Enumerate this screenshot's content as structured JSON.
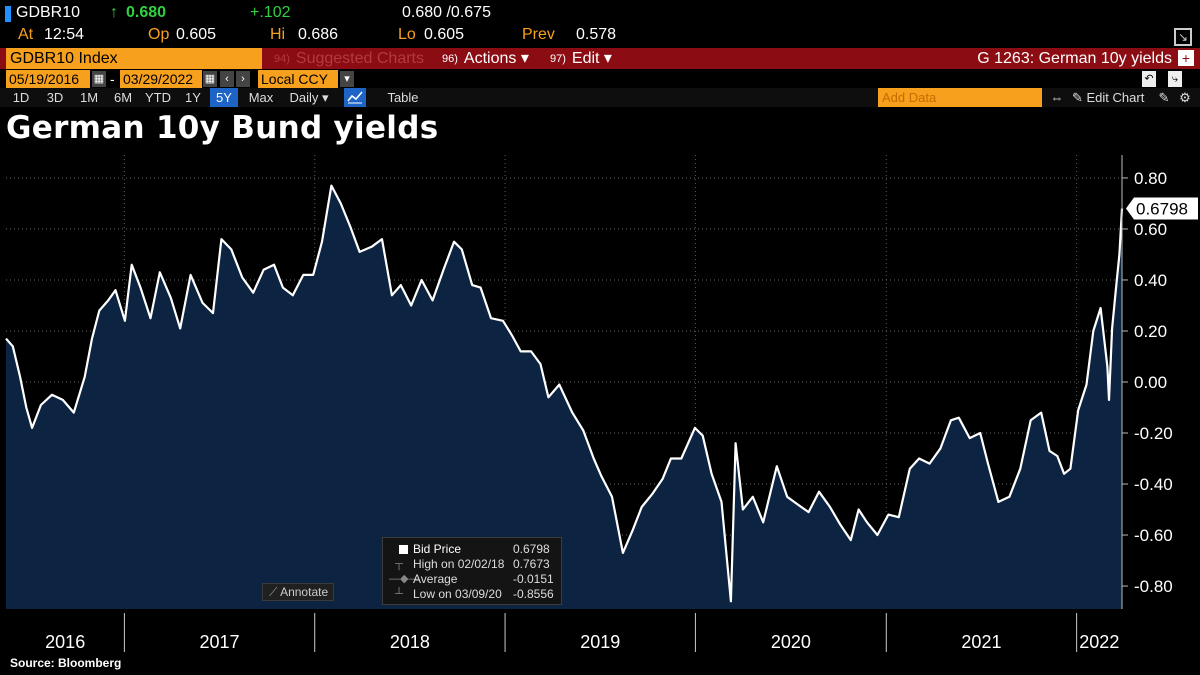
{
  "quote": {
    "ticker": "GDBR10",
    "last": "0.680",
    "up_arrow": "↑",
    "change": "+.102",
    "bid_ask": "0.680 /0.675",
    "at_label": "At",
    "time": "12:54",
    "open_label": "Op",
    "open": "0.605",
    "high_label": "Hi",
    "high": "0.686",
    "low_label": "Lo",
    "low": "0.605",
    "prev_label": "Prev",
    "prev": "0.578"
  },
  "command_bar": {
    "security": "GDBR10 Index",
    "suggested_num": "94)",
    "suggested": "Suggested Charts",
    "actions_num": "96)",
    "actions": "Actions ▾",
    "edit_num": "97)",
    "edit": "Edit ▾",
    "chart_id": "G 1263: German 10y yields"
  },
  "date_bar": {
    "start": "05/19/2016",
    "end": "03/29/2022",
    "currency": "Local CCY"
  },
  "range_bar": {
    "ranges": [
      "1D",
      "3D",
      "1M",
      "6M",
      "YTD",
      "1Y",
      "5Y",
      "Max"
    ],
    "selected": "5Y",
    "frequency": "Daily ▾",
    "table": "Table",
    "add_data": "Add Data",
    "edit_chart": "Edit Chart"
  },
  "colors": {
    "amber": "#f7a01d",
    "red_bar": "#8b0d13",
    "area_fill": "#0d2342",
    "line": "#ffffff",
    "selected_blue": "#1e63c6"
  },
  "annotate_label": "Annotate",
  "legend": {
    "rows": [
      {
        "icon": "square-icon",
        "label": "Bid Price",
        "value": "0.6798"
      },
      {
        "icon": "high-icon",
        "label": "High on 02/02/18",
        "value": "0.7673"
      },
      {
        "icon": "average-icon",
        "label": "Average",
        "value": "-0.0151"
      },
      {
        "icon": "low-icon",
        "label": "Low on 03/09/20",
        "value": "-0.8556"
      }
    ]
  },
  "source": "Source: Bloomberg",
  "chart_data": {
    "type": "area",
    "title": "German 10y Bund yields",
    "series": [
      {
        "name": "Bid Price",
        "x": [
          "2016-05-19",
          "2016-06-01",
          "2016-06-15",
          "2016-06-27",
          "2016-07-08",
          "2016-07-25",
          "2016-08-15",
          "2016-09-05",
          "2016-09-26",
          "2016-10-17",
          "2016-10-31",
          "2016-11-14",
          "2016-12-01",
          "2016-12-15",
          "2017-01-02",
          "2017-01-15",
          "2017-02-01",
          "2017-02-20",
          "2017-03-10",
          "2017-03-31",
          "2017-04-18",
          "2017-05-08",
          "2017-05-31",
          "2017-06-20",
          "2017-07-06",
          "2017-07-25",
          "2017-08-15",
          "2017-09-05",
          "2017-09-25",
          "2017-10-15",
          "2017-11-01",
          "2017-11-20",
          "2017-12-10",
          "2017-12-29",
          "2018-01-15",
          "2018-02-02",
          "2018-02-20",
          "2018-03-10",
          "2018-03-28",
          "2018-04-20",
          "2018-05-10",
          "2018-05-29",
          "2018-06-15",
          "2018-07-05",
          "2018-07-25",
          "2018-08-15",
          "2018-09-05",
          "2018-09-25",
          "2018-10-10",
          "2018-10-30",
          "2018-11-15",
          "2018-12-05",
          "2018-12-28",
          "2019-01-15",
          "2019-01-31",
          "2019-02-20",
          "2019-03-10",
          "2019-03-25",
          "2019-04-15",
          "2019-05-10",
          "2019-05-31",
          "2019-06-20",
          "2019-07-05",
          "2019-07-25",
          "2019-08-15",
          "2019-09-03",
          "2019-09-20",
          "2019-10-10",
          "2019-10-30",
          "2019-11-15",
          "2019-12-05",
          "2019-12-31",
          "2020-01-15",
          "2020-02-01",
          "2020-02-20",
          "2020-03-09",
          "2020-03-18",
          "2020-04-01",
          "2020-04-20",
          "2020-05-10",
          "2020-06-05",
          "2020-06-25",
          "2020-07-15",
          "2020-08-05",
          "2020-08-25",
          "2020-09-15",
          "2020-10-05",
          "2020-10-25",
          "2020-11-09",
          "2020-11-25",
          "2020-12-15",
          "2021-01-05",
          "2021-01-25",
          "2021-02-15",
          "2021-03-05",
          "2021-03-25",
          "2021-04-15",
          "2021-05-05",
          "2021-05-20",
          "2021-06-10",
          "2021-06-30",
          "2021-07-15",
          "2021-08-04",
          "2021-08-25",
          "2021-09-15",
          "2021-10-05",
          "2021-10-25",
          "2021-11-10",
          "2021-11-25",
          "2021-12-08",
          "2021-12-20",
          "2022-01-04",
          "2022-01-20",
          "2022-02-02",
          "2022-02-16",
          "2022-03-01",
          "2022-03-04",
          "2022-03-10",
          "2022-03-18",
          "2022-03-24",
          "2022-03-29"
        ],
        "values": [
          0.17,
          0.14,
          0.02,
          -0.1,
          -0.18,
          -0.09,
          -0.05,
          -0.07,
          -0.12,
          0.02,
          0.17,
          0.28,
          0.32,
          0.36,
          0.24,
          0.46,
          0.37,
          0.25,
          0.43,
          0.33,
          0.21,
          0.42,
          0.31,
          0.27,
          0.56,
          0.52,
          0.41,
          0.35,
          0.44,
          0.46,
          0.37,
          0.34,
          0.42,
          0.42,
          0.55,
          0.77,
          0.7,
          0.61,
          0.51,
          0.53,
          0.56,
          0.34,
          0.38,
          0.3,
          0.4,
          0.32,
          0.44,
          0.55,
          0.52,
          0.38,
          0.37,
          0.25,
          0.24,
          0.18,
          0.12,
          0.12,
          0.07,
          -0.06,
          -0.01,
          -0.12,
          -0.19,
          -0.3,
          -0.37,
          -0.45,
          -0.67,
          -0.58,
          -0.49,
          -0.44,
          -0.38,
          -0.3,
          -0.3,
          -0.18,
          -0.21,
          -0.36,
          -0.47,
          -0.86,
          -0.24,
          -0.5,
          -0.45,
          -0.55,
          -0.33,
          -0.45,
          -0.48,
          -0.51,
          -0.43,
          -0.49,
          -0.56,
          -0.62,
          -0.5,
          -0.55,
          -0.6,
          -0.52,
          -0.53,
          -0.34,
          -0.3,
          -0.32,
          -0.26,
          -0.15,
          -0.14,
          -0.22,
          -0.2,
          -0.32,
          -0.47,
          -0.45,
          -0.34,
          -0.15,
          -0.12,
          -0.27,
          -0.29,
          -0.36,
          -0.34,
          -0.11,
          -0.01,
          0.2,
          0.29,
          0.06,
          -0.07,
          0.21,
          0.38,
          0.5,
          0.68
        ]
      }
    ],
    "x_tick_labels": [
      "2016",
      "2017",
      "2018",
      "2019",
      "2020",
      "2021",
      "2022"
    ],
    "y_tick_labels": [
      "0.80",
      "0.60",
      "0.40",
      "0.20",
      "0.00",
      "-0.20",
      "-0.40",
      "-0.60",
      "-0.80"
    ],
    "y_ticks": [
      0.8,
      0.6,
      0.4,
      0.2,
      0.0,
      -0.2,
      -0.4,
      -0.6,
      -0.8
    ],
    "ylim": [
      -0.89,
      0.89
    ],
    "xlim": [
      "2016-05-19",
      "2022-03-29"
    ],
    "last_value_label": "0.6798",
    "grid": true,
    "legend_position": "bottom-center"
  }
}
